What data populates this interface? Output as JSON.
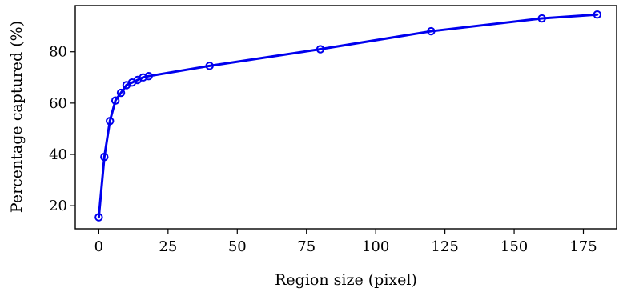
{
  "chart_data": {
    "type": "line",
    "title": "",
    "xlabel": "Region size (pixel)",
    "ylabel": "Percentage captured (%)",
    "xlim": [
      -8.5,
      187
    ],
    "ylim": [
      11,
      98
    ],
    "xticks": [
      0,
      25,
      50,
      75,
      100,
      125,
      150,
      175
    ],
    "yticks": [
      20,
      40,
      60,
      80
    ],
    "grid": false,
    "legend": null,
    "series": [
      {
        "color": "#0000ee",
        "marker": "circle-open",
        "x": [
          0,
          2,
          4,
          6,
          8,
          10,
          12,
          14,
          16,
          18,
          40,
          80,
          120,
          160,
          180
        ],
        "y": [
          15.5,
          39,
          53,
          61,
          64,
          67,
          68,
          69,
          70,
          70.5,
          74.5,
          81,
          88,
          93,
          94.5
        ]
      }
    ]
  }
}
